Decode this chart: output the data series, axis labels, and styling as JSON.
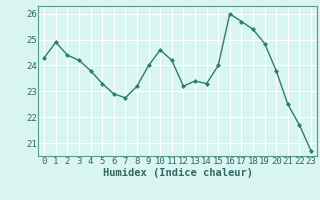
{
  "x": [
    0,
    1,
    2,
    3,
    4,
    5,
    6,
    7,
    8,
    9,
    10,
    11,
    12,
    13,
    14,
    15,
    16,
    17,
    18,
    19,
    20,
    21,
    22,
    23
  ],
  "y": [
    24.3,
    24.9,
    24.4,
    24.2,
    23.8,
    23.3,
    22.9,
    22.75,
    23.2,
    24.0,
    24.6,
    24.2,
    23.2,
    23.4,
    23.3,
    24.0,
    26.0,
    25.7,
    25.4,
    24.85,
    23.8,
    22.5,
    21.7,
    20.7
  ],
  "line_color": "#2e7d6e",
  "marker": "D",
  "marker_size": 2.0,
  "bg_color": "#d8f5f0",
  "grid_color": "#ffffff",
  "xlabel": "Humidex (Indice chaleur)",
  "ylim": [
    20.5,
    26.3
  ],
  "yticks": [
    21,
    22,
    23,
    24,
    25,
    26
  ],
  "xtick_labels": [
    "0",
    "1",
    "2",
    "3",
    "4",
    "5",
    "6",
    "7",
    "8",
    "9",
    "10",
    "11",
    "12",
    "13",
    "14",
    "15",
    "16",
    "17",
    "18",
    "19",
    "20",
    "21",
    "22",
    "23"
  ],
  "font_color": "#336666",
  "xlabel_fontsize": 7.5,
  "tick_fontsize": 6.5,
  "line_width": 1.0
}
